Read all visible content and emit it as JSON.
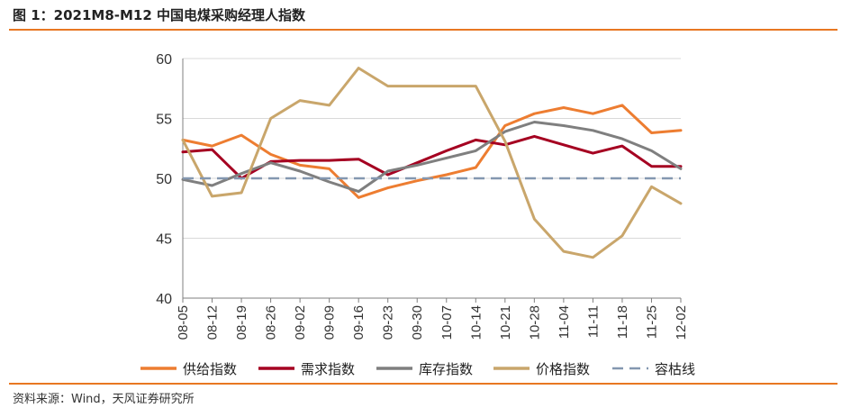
{
  "figure": {
    "title": "图 1：2021M8-M12 中国电煤采购经理人指数",
    "source": "资料来源：Wind，天风证券研究所",
    "accent_color": "#E87722"
  },
  "chart_data": {
    "type": "line",
    "title": "",
    "xlabel": "",
    "ylabel": "",
    "ylim": [
      40,
      60
    ],
    "yticks": [
      "40",
      "45",
      "50",
      "55",
      "60"
    ],
    "categories": [
      "08-05",
      "08-12",
      "08-19",
      "08-26",
      "09-02",
      "09-09",
      "09-16",
      "09-23",
      "09-30",
      "10-07",
      "10-14",
      "10-21",
      "10-28",
      "11-04",
      "11-11",
      "11-18",
      "11-25",
      "12-02"
    ],
    "legend_position": "bottom",
    "series": [
      {
        "name": "供给指数",
        "color": "#ED7D31",
        "dash": false,
        "values": [
          53.2,
          52.7,
          53.6,
          52.0,
          51.1,
          50.8,
          48.4,
          49.2,
          49.8,
          50.3,
          50.9,
          54.4,
          55.4,
          55.9,
          55.4,
          56.1,
          53.8,
          54.0
        ]
      },
      {
        "name": "需求指数",
        "color": "#A50021",
        "dash": false,
        "values": [
          52.2,
          52.4,
          50.0,
          51.4,
          51.5,
          51.5,
          51.6,
          50.3,
          51.3,
          52.3,
          53.2,
          52.8,
          53.5,
          52.8,
          52.1,
          52.7,
          51.0,
          51.0
        ]
      },
      {
        "name": "库存指数",
        "color": "#7F7F7F",
        "dash": false,
        "values": [
          49.9,
          49.4,
          50.4,
          51.3,
          50.6,
          49.7,
          48.9,
          50.6,
          51.1,
          51.7,
          52.3,
          53.9,
          54.7,
          54.4,
          54.0,
          53.3,
          52.3,
          50.8
        ]
      },
      {
        "name": "价格指数",
        "color": "#C9A66B",
        "dash": false,
        "values": [
          53.2,
          48.5,
          48.8,
          55.0,
          56.5,
          56.1,
          59.2,
          57.7,
          57.7,
          57.7,
          57.7,
          53.1,
          46.6,
          43.9,
          43.4,
          45.2,
          49.3,
          47.9
        ]
      },
      {
        "name": "容枯线",
        "color": "#8497B0",
        "dash": true,
        "values": [
          50,
          50,
          50,
          50,
          50,
          50,
          50,
          50,
          50,
          50,
          50,
          50,
          50,
          50,
          50,
          50,
          50,
          50
        ]
      }
    ]
  }
}
